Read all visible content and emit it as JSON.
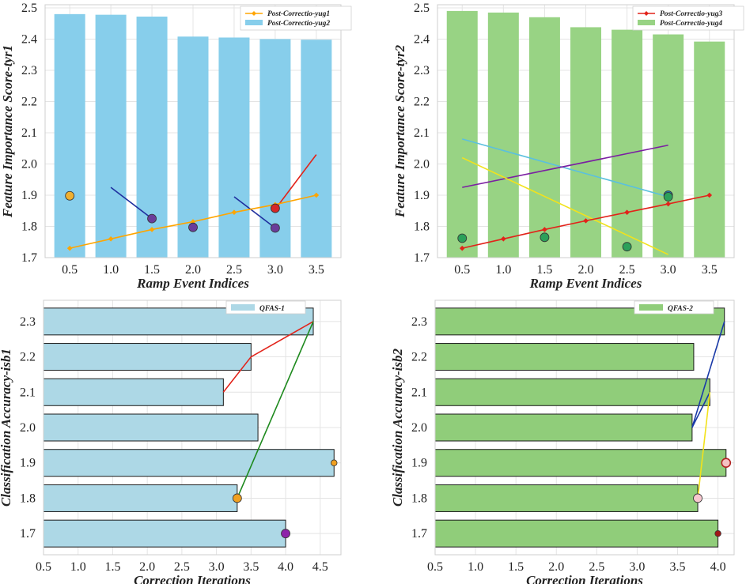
{
  "chart_data": [
    {
      "id": "tl",
      "type": "bar",
      "orientation": "vertical",
      "xlabel": "Ramp Event Indices",
      "ylabel": "Feature Importance Score-tyr1",
      "xticks": [
        0.5,
        1.0,
        1.5,
        2.0,
        2.5,
        3.0,
        3.5
      ],
      "yticks": [
        1.7,
        1.8,
        1.9,
        2.0,
        2.1,
        2.2,
        2.3,
        2.4,
        2.5
      ],
      "xlim": [
        0.2,
        3.8
      ],
      "ylim": [
        1.7,
        2.51
      ],
      "grid": true,
      "legend_position": "top-right",
      "bars": {
        "name": "Post-Correctio-yug2",
        "color": "#87ceeb",
        "x": [
          0.5,
          1.0,
          1.5,
          2.0,
          2.5,
          3.0,
          3.5
        ],
        "values": [
          2.48,
          2.478,
          2.472,
          2.408,
          2.405,
          2.4,
          2.398
        ]
      },
      "line": {
        "name": "Post-Correctio-yug1",
        "color": "#ffa500",
        "x": [
          0.5,
          1.0,
          1.5,
          2.0,
          2.5,
          3.0,
          3.5
        ],
        "values": [
          1.73,
          1.76,
          1.79,
          1.815,
          1.845,
          1.87,
          1.9
        ]
      },
      "segments": [
        {
          "color": "#1f2f9f",
          "x": [
            1.0,
            1.5
          ],
          "y": [
            1.925,
            1.825
          ]
        },
        {
          "color": "#1f2f9f",
          "x": [
            2.5,
            3.0
          ],
          "y": [
            1.895,
            1.795
          ]
        },
        {
          "color": "#e2231a",
          "x": [
            3.0,
            3.5
          ],
          "y": [
            1.855,
            2.03
          ]
        }
      ],
      "points": [
        {
          "x": 0.5,
          "y": 1.898,
          "color": "#f0b030"
        },
        {
          "x": 1.5,
          "y": 1.825,
          "color": "#6a3d9a"
        },
        {
          "x": 2.0,
          "y": 1.797,
          "color": "#6a3d9a"
        },
        {
          "x": 3.0,
          "y": 1.795,
          "color": "#6a3d9a"
        },
        {
          "x": 3.0,
          "y": 1.858,
          "color": "#d62728"
        }
      ]
    },
    {
      "id": "tr",
      "type": "bar",
      "orientation": "vertical",
      "xlabel": "Ramp Event Indices",
      "ylabel": "Feature Importance Score-tyr2",
      "xticks": [
        0.5,
        1.0,
        1.5,
        2.0,
        2.5,
        3.0,
        3.5
      ],
      "yticks": [
        1.7,
        1.8,
        1.9,
        2.0,
        2.1,
        2.2,
        2.3,
        2.4,
        2.5
      ],
      "xlim": [
        0.2,
        3.8
      ],
      "ylim": [
        1.7,
        2.51
      ],
      "grid": true,
      "legend_position": "top-right",
      "bars": {
        "name": "Post-Correctio-yug4",
        "color": "#98d384",
        "x": [
          0.5,
          1.0,
          1.5,
          2.0,
          2.5,
          3.0,
          3.5
        ],
        "values": [
          2.49,
          2.485,
          2.47,
          2.438,
          2.43,
          2.415,
          2.392
        ]
      },
      "line": {
        "name": "Post-Correctio-yug3",
        "color": "#e2231a",
        "x": [
          0.5,
          1.0,
          1.5,
          2.0,
          2.5,
          3.0,
          3.5
        ],
        "values": [
          1.73,
          1.76,
          1.79,
          1.818,
          1.845,
          1.872,
          1.9
        ]
      },
      "segments": [
        {
          "color": "#5bc0de",
          "x": [
            0.5,
            3.0
          ],
          "y": [
            2.08,
            1.895
          ]
        },
        {
          "color": "#7b1fa2",
          "x": [
            0.5,
            3.0
          ],
          "y": [
            1.925,
            2.06
          ]
        },
        {
          "color": "#f2e21b",
          "x": [
            0.5,
            3.0
          ],
          "y": [
            2.02,
            1.71
          ]
        }
      ],
      "points": [
        {
          "x": 0.5,
          "y": 1.762,
          "color": "#2ca05a"
        },
        {
          "x": 1.5,
          "y": 1.765,
          "color": "#2ca05a"
        },
        {
          "x": 2.5,
          "y": 1.735,
          "color": "#2ca05a"
        },
        {
          "x": 3.0,
          "y": 1.9,
          "color": "#1f77b4"
        },
        {
          "x": 3.0,
          "y": 1.895,
          "color": "#2ca05a"
        }
      ]
    },
    {
      "id": "bl",
      "type": "bar",
      "orientation": "horizontal",
      "xlabel": "Correction Iterations",
      "ylabel": "Classification Accuracy-isb1",
      "xticks": [
        0.5,
        1.0,
        1.5,
        2.0,
        2.5,
        3.0,
        3.5,
        4.0,
        4.5
      ],
      "yticks": [
        1.7,
        1.8,
        1.9,
        2.0,
        2.1,
        2.2,
        2.3
      ],
      "xlim": [
        0.5,
        4.8
      ],
      "ylim": [
        1.64,
        2.36
      ],
      "grid": true,
      "legend_position": "top-center",
      "bars": {
        "name": "QFAS-1",
        "color": "#add8e6",
        "categories": [
          1.7,
          1.8,
          1.9,
          2.0,
          2.1,
          2.2,
          2.3
        ],
        "values": [
          4.0,
          3.3,
          4.7,
          3.6,
          3.1,
          3.5,
          4.4
        ]
      },
      "segments": [
        {
          "color": "#e2231a",
          "x": [
            3.1,
            3.5,
            4.4
          ],
          "y": [
            2.1,
            2.2,
            2.3
          ]
        },
        {
          "color": "#1e8a1e",
          "x": [
            3.3,
            4.4
          ],
          "y": [
            1.8,
            2.3
          ]
        }
      ],
      "points": [
        {
          "x": 4.7,
          "y": 1.9,
          "color": "#f0a020",
          "size": "small"
        },
        {
          "x": 3.3,
          "y": 1.8,
          "color": "#f0a020",
          "size": "large"
        },
        {
          "x": 4.0,
          "y": 1.7,
          "color": "#8e24aa",
          "size": "large"
        }
      ]
    },
    {
      "id": "br",
      "type": "bar",
      "orientation": "horizontal",
      "xlabel": "Correction Iterations",
      "ylabel": "Classification Accuracy-isb2",
      "xticks": [
        0.5,
        1.0,
        1.5,
        2.0,
        2.5,
        3.0,
        3.5,
        4.0
      ],
      "yticks": [
        1.7,
        1.8,
        1.9,
        2.0,
        2.1,
        2.2,
        2.3
      ],
      "xlim": [
        0.5,
        4.2
      ],
      "ylim": [
        1.64,
        2.36
      ],
      "grid": true,
      "legend_position": "top-center",
      "bars": {
        "name": "QFAS-2",
        "color": "#90cd7a",
        "categories": [
          1.7,
          1.8,
          1.9,
          2.0,
          2.1,
          2.2,
          2.3
        ],
        "values": [
          4.0,
          3.75,
          4.1,
          3.68,
          3.9,
          3.7,
          4.08
        ]
      },
      "segments": [
        {
          "color": "#1a3aa8",
          "x": [
            3.68,
            4.08
          ],
          "y": [
            2.0,
            2.3
          ]
        },
        {
          "color": "#1a3aa8",
          "x": [
            3.68,
            3.9
          ],
          "y": [
            2.0,
            2.1
          ]
        },
        {
          "color": "#f2e21b",
          "x": [
            3.75,
            3.9
          ],
          "y": [
            1.8,
            2.1
          ]
        }
      ],
      "points": [
        {
          "x": 4.1,
          "y": 1.9,
          "color": "#f4c2c2",
          "stroke": "#b22222",
          "size": "large"
        },
        {
          "x": 3.75,
          "y": 1.8,
          "color": "#f8c8d0",
          "size": "large"
        },
        {
          "x": 4.0,
          "y": 1.7,
          "color": "#a01818",
          "size": "small"
        }
      ]
    }
  ]
}
